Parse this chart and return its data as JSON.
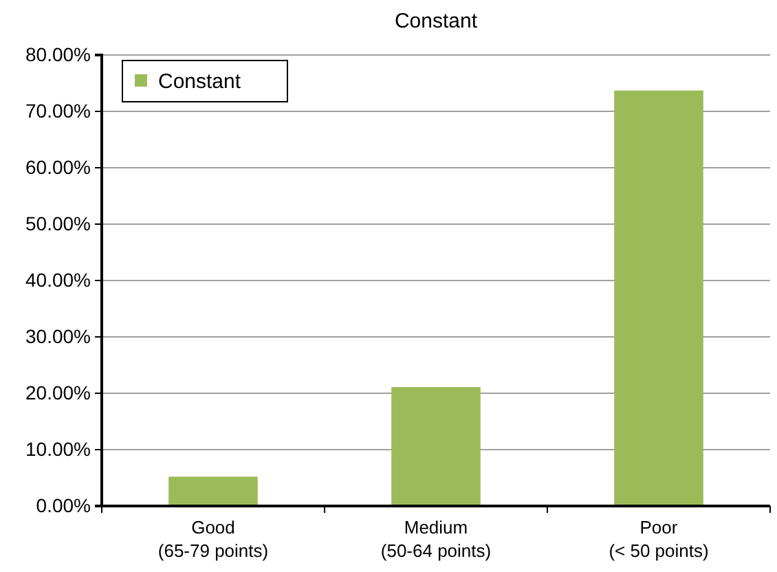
{
  "chart_data": {
    "type": "bar",
    "title": "Constant",
    "categories": [
      "Good\n(65-79 points)",
      "Medium\n(50-64 points)",
      "Poor\n(< 50 points)"
    ],
    "series": [
      {
        "name": "Constant",
        "color": "#9bbb59",
        "values": [
          5.2,
          21.1,
          73.7
        ]
      }
    ],
    "ylim": [
      0,
      80
    ],
    "yticks": [
      {
        "value": 0,
        "label": "0.00%"
      },
      {
        "value": 10,
        "label": "10.00%"
      },
      {
        "value": 20,
        "label": "20.00%"
      },
      {
        "value": 30,
        "label": "30.00%"
      },
      {
        "value": 40,
        "label": "40.00%"
      },
      {
        "value": 50,
        "label": "50.00%"
      },
      {
        "value": 60,
        "label": "60.00%"
      },
      {
        "value": 70,
        "label": "70.00%"
      },
      {
        "value": 80,
        "label": "80.00%"
      }
    ],
    "grid": "y",
    "legend": "top left"
  }
}
